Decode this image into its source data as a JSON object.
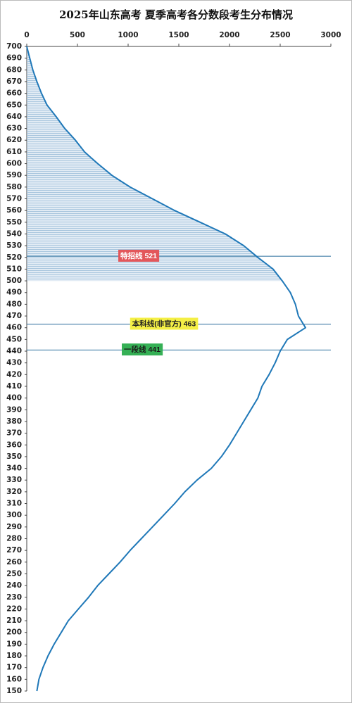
{
  "chart_data": {
    "type": "line",
    "orientation": "horizontal",
    "title": "2025年山东高考  夏季高考各分数段考生分布情况",
    "x": [
      700,
      690,
      680,
      670,
      660,
      650,
      640,
      630,
      620,
      610,
      600,
      590,
      580,
      570,
      560,
      550,
      540,
      530,
      520,
      510,
      500,
      490,
      480,
      470,
      460,
      450,
      440,
      430,
      420,
      410,
      400,
      390,
      380,
      370,
      360,
      350,
      340,
      330,
      320,
      310,
      300,
      290,
      280,
      270,
      260,
      250,
      240,
      230,
      220,
      210,
      200,
      190,
      180,
      170,
      160,
      150
    ],
    "series": [
      {
        "color": "#1f78b8",
        "values": [
          0,
          30,
          60,
          100,
          145,
          200,
          290,
          375,
          480,
          570,
          700,
          840,
          1020,
          1240,
          1460,
          1710,
          1960,
          2140,
          2280,
          2430,
          2520,
          2600,
          2650,
          2680,
          2750,
          2570,
          2500,
          2450,
          2390,
          2320,
          2280,
          2210,
          2140,
          2070,
          2000,
          1920,
          1820,
          1680,
          1560,
          1460,
          1350,
          1240,
          1130,
          1020,
          920,
          810,
          700,
          610,
          510,
          410,
          340,
          270,
          210,
          160,
          120,
          100
        ]
      }
    ],
    "xlim": [
      0,
      3000
    ],
    "xticks": [
      0,
      500,
      1000,
      1500,
      2000,
      2500,
      3000
    ],
    "ylim": [
      150,
      700
    ],
    "yticks": [
      150,
      160,
      170,
      180,
      190,
      200,
      210,
      220,
      230,
      240,
      250,
      260,
      270,
      280,
      290,
      300,
      310,
      320,
      330,
      340,
      350,
      360,
      370,
      380,
      390,
      400,
      410,
      420,
      430,
      440,
      450,
      460,
      470,
      480,
      490,
      500,
      510,
      520,
      530,
      540,
      550,
      560,
      570,
      580,
      590,
      600,
      610,
      620,
      630,
      640,
      650,
      660,
      670,
      680,
      690,
      700
    ],
    "shaded_range": [
      500,
      700
    ],
    "shade_color": "#a9c6de",
    "reference_lines": [
      {
        "y": 521,
        "label": "特招线 521",
        "color": "#e3575b",
        "text_color": "#ffffff"
      },
      {
        "y": 463,
        "label": "本科线(非官方) 463",
        "color": "#f4ef45",
        "text_color": "#222222"
      },
      {
        "y": 441,
        "label": "一段线 441",
        "color": "#35b055",
        "text_color": "#1a1a1a"
      }
    ]
  }
}
